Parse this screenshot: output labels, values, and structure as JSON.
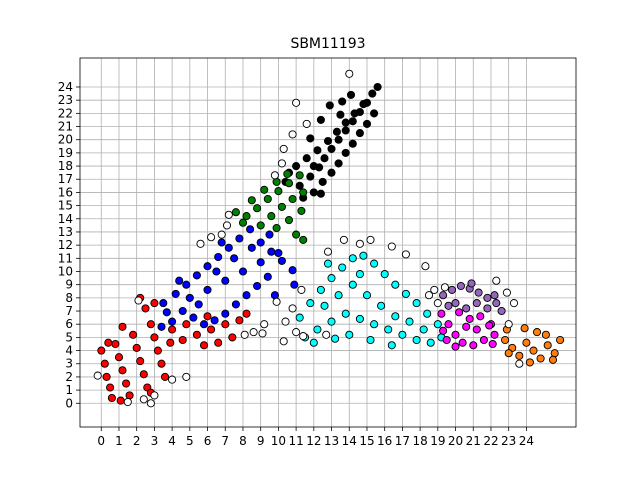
{
  "chart_data": {
    "type": "scatter",
    "title": "SBM11193",
    "xlabel": "",
    "ylabel": "",
    "xlim": [
      -1.2,
      26.8
    ],
    "ylim": [
      -1.8,
      26.2
    ],
    "x_ticks": [
      "0",
      "1",
      "2",
      "3",
      "4",
      "5",
      "6",
      "7",
      "8",
      "9",
      "10",
      "11",
      "12",
      "13",
      "14",
      "15",
      "16",
      "17",
      "18",
      "19",
      "20",
      "21",
      "22",
      "23",
      "24"
    ],
    "y_ticks": [
      "0",
      "1",
      "2",
      "3",
      "4",
      "5",
      "6",
      "7",
      "8",
      "9",
      "10",
      "11",
      "12",
      "13",
      "14",
      "15",
      "16",
      "17",
      "18",
      "19",
      "20",
      "21",
      "22",
      "23",
      "24"
    ],
    "grid": true,
    "marker": "circle",
    "marker_edge_color": "#000000",
    "colors": {
      "black": "#000000",
      "green": "#008000",
      "blue": "#0000ff",
      "red": "#ff0000",
      "cyan": "#00ffff",
      "magenta": "#ff00ff",
      "purple": "#9467bd",
      "orange": "#ff7f0e",
      "white": "#ffffff"
    },
    "series": [
      {
        "color_key": "black",
        "points": [
          [
            11.2,
            16.5
          ],
          [
            11.8,
            17.2
          ],
          [
            12.3,
            17.9
          ],
          [
            12.6,
            18.6
          ],
          [
            13.0,
            19.3
          ],
          [
            13.4,
            20.0
          ],
          [
            13.8,
            20.7
          ],
          [
            14.2,
            21.4
          ],
          [
            14.6,
            22.1
          ],
          [
            15.0,
            22.8
          ],
          [
            15.3,
            23.5
          ],
          [
            15.6,
            24.0
          ],
          [
            12.0,
            16.0
          ],
          [
            12.5,
            16.8
          ],
          [
            13.0,
            17.5
          ],
          [
            13.4,
            18.2
          ],
          [
            13.8,
            19.0
          ],
          [
            14.2,
            19.7
          ],
          [
            14.6,
            20.5
          ],
          [
            15.0,
            21.2
          ],
          [
            15.4,
            22.0
          ],
          [
            11.0,
            18.0
          ],
          [
            11.6,
            18.6
          ],
          [
            12.2,
            19.2
          ],
          [
            12.8,
            19.9
          ],
          [
            13.3,
            20.6
          ],
          [
            13.8,
            21.3
          ],
          [
            14.3,
            22.0
          ],
          [
            14.8,
            22.7
          ],
          [
            10.6,
            17.5
          ],
          [
            11.4,
            15.6
          ],
          [
            12.4,
            15.9
          ],
          [
            13.5,
            21.9
          ],
          [
            12.9,
            22.6
          ],
          [
            12.4,
            21.5
          ],
          [
            11.8,
            20.1
          ],
          [
            14.1,
            23.4
          ],
          [
            13.6,
            22.9
          ],
          [
            10.4,
            16.8
          ],
          [
            12.0,
            18.0
          ]
        ]
      },
      {
        "color_key": "green",
        "points": [
          [
            8.2,
            14.2
          ],
          [
            8.8,
            14.8
          ],
          [
            9.4,
            15.5
          ],
          [
            10.0,
            16.1
          ],
          [
            10.6,
            16.7
          ],
          [
            11.2,
            17.3
          ],
          [
            9.0,
            13.5
          ],
          [
            9.6,
            14.2
          ],
          [
            10.2,
            14.9
          ],
          [
            10.8,
            15.5
          ],
          [
            11.3,
            14.6
          ],
          [
            10.6,
            13.9
          ],
          [
            9.9,
            13.3
          ],
          [
            11.0,
            12.8
          ],
          [
            11.4,
            12.4
          ],
          [
            8.5,
            15.4
          ],
          [
            9.2,
            16.2
          ],
          [
            9.9,
            16.8
          ],
          [
            10.5,
            17.4
          ],
          [
            8.0,
            13.7
          ],
          [
            11.4,
            16.0
          ],
          [
            7.6,
            14.5
          ]
        ]
      },
      {
        "color_key": "blue",
        "points": [
          [
            3.5,
            7.6
          ],
          [
            4.2,
            8.3
          ],
          [
            4.8,
            9.0
          ],
          [
            5.4,
            9.7
          ],
          [
            6.0,
            10.4
          ],
          [
            6.6,
            11.1
          ],
          [
            7.2,
            11.8
          ],
          [
            7.8,
            12.5
          ],
          [
            8.4,
            13.2
          ],
          [
            9.0,
            12.2
          ],
          [
            9.6,
            11.5
          ],
          [
            10.2,
            10.8
          ],
          [
            10.8,
            10.1
          ],
          [
            9.4,
            9.6
          ],
          [
            8.8,
            8.9
          ],
          [
            8.2,
            8.2
          ],
          [
            7.6,
            7.5
          ],
          [
            7.0,
            6.8
          ],
          [
            6.4,
            6.3
          ],
          [
            5.8,
            6.0
          ],
          [
            5.2,
            6.5
          ],
          [
            4.6,
            7.0
          ],
          [
            4.0,
            6.2
          ],
          [
            3.4,
            5.8
          ],
          [
            5.0,
            8.0
          ],
          [
            6.0,
            8.6
          ],
          [
            7.0,
            9.3
          ],
          [
            8.0,
            10.0
          ],
          [
            9.0,
            10.7
          ],
          [
            10.0,
            11.4
          ],
          [
            6.5,
            10.0
          ],
          [
            7.5,
            11.0
          ],
          [
            8.5,
            11.8
          ],
          [
            9.5,
            12.8
          ],
          [
            5.5,
            7.5
          ],
          [
            6.8,
            12.2
          ],
          [
            10.9,
            9.0
          ],
          [
            9.8,
            8.2
          ],
          [
            3.7,
            6.9
          ],
          [
            4.4,
            9.3
          ]
        ]
      },
      {
        "color_key": "red",
        "points": [
          [
            0.0,
            4.0
          ],
          [
            0.2,
            3.0
          ],
          [
            0.3,
            2.0
          ],
          [
            0.5,
            1.2
          ],
          [
            0.6,
            0.4
          ],
          [
            0.8,
            4.5
          ],
          [
            1.0,
            3.5
          ],
          [
            1.2,
            2.5
          ],
          [
            1.4,
            1.5
          ],
          [
            1.6,
            0.6
          ],
          [
            1.8,
            5.2
          ],
          [
            2.0,
            4.2
          ],
          [
            2.2,
            3.2
          ],
          [
            2.4,
            2.2
          ],
          [
            2.6,
            1.2
          ],
          [
            2.8,
            6.0
          ],
          [
            3.0,
            5.0
          ],
          [
            3.2,
            4.0
          ],
          [
            3.4,
            3.0
          ],
          [
            3.6,
            2.0
          ],
          [
            2.5,
            7.2
          ],
          [
            2.2,
            8.0
          ],
          [
            3.0,
            7.6
          ],
          [
            4.0,
            5.6
          ],
          [
            4.6,
            4.8
          ],
          [
            5.4,
            5.2
          ],
          [
            6.2,
            5.6
          ],
          [
            7.0,
            6.0
          ],
          [
            7.8,
            6.3
          ],
          [
            6.6,
            4.6
          ],
          [
            5.8,
            4.4
          ],
          [
            7.4,
            5.0
          ],
          [
            1.2,
            5.8
          ],
          [
            0.4,
            4.6
          ],
          [
            2.8,
            0.8
          ],
          [
            1.1,
            0.2
          ],
          [
            3.9,
            4.6
          ],
          [
            8.2,
            6.8
          ],
          [
            6.0,
            6.6
          ],
          [
            4.8,
            6.0
          ]
        ]
      },
      {
        "color_key": "cyan",
        "points": [
          [
            11.2,
            6.5
          ],
          [
            11.8,
            7.6
          ],
          [
            12.4,
            8.6
          ],
          [
            13.0,
            9.5
          ],
          [
            13.6,
            10.3
          ],
          [
            14.2,
            11.0
          ],
          [
            14.8,
            11.2
          ],
          [
            15.4,
            10.6
          ],
          [
            16.0,
            9.8
          ],
          [
            16.6,
            9.0
          ],
          [
            17.2,
            8.3
          ],
          [
            17.8,
            7.6
          ],
          [
            18.4,
            6.8
          ],
          [
            19.0,
            6.0
          ],
          [
            19.2,
            5.0
          ],
          [
            18.6,
            4.6
          ],
          [
            17.8,
            4.8
          ],
          [
            17.0,
            5.2
          ],
          [
            16.2,
            5.6
          ],
          [
            15.4,
            6.0
          ],
          [
            14.6,
            6.4
          ],
          [
            13.8,
            6.8
          ],
          [
            13.0,
            6.2
          ],
          [
            12.2,
            5.6
          ],
          [
            12.6,
            7.4
          ],
          [
            13.4,
            8.2
          ],
          [
            14.2,
            9.0
          ],
          [
            15.0,
            8.2
          ],
          [
            15.8,
            7.4
          ],
          [
            16.6,
            6.6
          ],
          [
            17.4,
            6.2
          ],
          [
            18.2,
            5.6
          ],
          [
            14.0,
            5.2
          ],
          [
            15.2,
            4.8
          ],
          [
            16.4,
            4.4
          ],
          [
            12.8,
            10.6
          ],
          [
            14.6,
            9.8
          ],
          [
            11.5,
            5.0
          ],
          [
            12.0,
            4.6
          ],
          [
            13.2,
            4.9
          ]
        ]
      },
      {
        "color_key": "magenta",
        "points": [
          [
            19.2,
            6.8
          ],
          [
            19.6,
            6.0
          ],
          [
            20.0,
            5.2
          ],
          [
            20.4,
            4.6
          ],
          [
            20.8,
            6.4
          ],
          [
            21.2,
            5.6
          ],
          [
            21.6,
            4.8
          ],
          [
            22.0,
            6.0
          ],
          [
            22.2,
            5.2
          ],
          [
            19.5,
            4.8
          ],
          [
            20.6,
            5.8
          ],
          [
            21.4,
            6.6
          ],
          [
            19.3,
            5.5
          ],
          [
            22.1,
            4.5
          ],
          [
            20.2,
            6.9
          ],
          [
            21.0,
            4.4
          ],
          [
            21.9,
            5.9
          ],
          [
            20.0,
            4.3
          ]
        ]
      },
      {
        "color_key": "purple",
        "points": [
          [
            19.3,
            8.2
          ],
          [
            19.8,
            8.6
          ],
          [
            20.3,
            8.9
          ],
          [
            20.8,
            8.7
          ],
          [
            21.3,
            8.4
          ],
          [
            21.8,
            8.0
          ],
          [
            22.3,
            7.6
          ],
          [
            22.6,
            7.0
          ],
          [
            20.0,
            7.6
          ],
          [
            20.6,
            7.2
          ],
          [
            21.2,
            7.6
          ],
          [
            21.8,
            7.2
          ],
          [
            22.2,
            8.2
          ],
          [
            19.6,
            7.4
          ],
          [
            20.9,
            9.1
          ]
        ]
      },
      {
        "color_key": "orange",
        "points": [
          [
            22.8,
            4.8
          ],
          [
            23.2,
            4.2
          ],
          [
            23.6,
            3.6
          ],
          [
            24.0,
            4.6
          ],
          [
            24.4,
            4.0
          ],
          [
            24.8,
            3.4
          ],
          [
            25.2,
            4.4
          ],
          [
            25.6,
            3.8
          ],
          [
            25.9,
            4.8
          ],
          [
            24.6,
            5.4
          ],
          [
            23.9,
            5.7
          ],
          [
            25.1,
            5.2
          ],
          [
            23.0,
            3.8
          ],
          [
            24.2,
            3.1
          ],
          [
            25.5,
            3.3
          ],
          [
            22.9,
            5.6
          ]
        ]
      },
      {
        "color_key": "white",
        "points": [
          [
            14.0,
            25.0
          ],
          [
            10.2,
            18.2
          ],
          [
            11.0,
            22.8
          ],
          [
            11.6,
            21.2
          ],
          [
            10.8,
            20.4
          ],
          [
            10.3,
            19.3
          ],
          [
            9.8,
            17.3
          ],
          [
            7.1,
            13.5
          ],
          [
            6.8,
            12.8
          ],
          [
            6.2,
            12.6
          ],
          [
            5.6,
            12.1
          ],
          [
            7.2,
            14.3
          ],
          [
            12.8,
            11.5
          ],
          [
            13.7,
            12.4
          ],
          [
            14.6,
            12.1
          ],
          [
            15.2,
            12.4
          ],
          [
            16.4,
            11.9
          ],
          [
            17.2,
            11.3
          ],
          [
            18.3,
            10.4
          ],
          [
            18.8,
            8.6
          ],
          [
            18.5,
            8.2
          ],
          [
            19.0,
            7.6
          ],
          [
            19.4,
            8.8
          ],
          [
            22.3,
            9.3
          ],
          [
            22.9,
            8.4
          ],
          [
            23.3,
            7.6
          ],
          [
            23.0,
            6.0
          ],
          [
            9.2,
            6.0
          ],
          [
            9.1,
            5.3
          ],
          [
            8.6,
            5.4
          ],
          [
            8.1,
            5.2
          ],
          [
            10.4,
            6.2
          ],
          [
            11.3,
            8.6
          ],
          [
            10.8,
            7.2
          ],
          [
            11.0,
            5.4
          ],
          [
            4.0,
            1.8
          ],
          [
            4.8,
            2.0
          ],
          [
            2.4,
            0.3
          ],
          [
            2.8,
            0.0
          ],
          [
            1.5,
            0.1
          ],
          [
            3.0,
            0.6
          ],
          [
            2.1,
            7.8
          ],
          [
            12.7,
            5.2
          ],
          [
            11.4,
            5.1
          ],
          [
            -0.2,
            2.1
          ],
          [
            9.9,
            7.7
          ],
          [
            10.3,
            4.7
          ],
          [
            23.6,
            3.0
          ]
        ]
      }
    ]
  }
}
